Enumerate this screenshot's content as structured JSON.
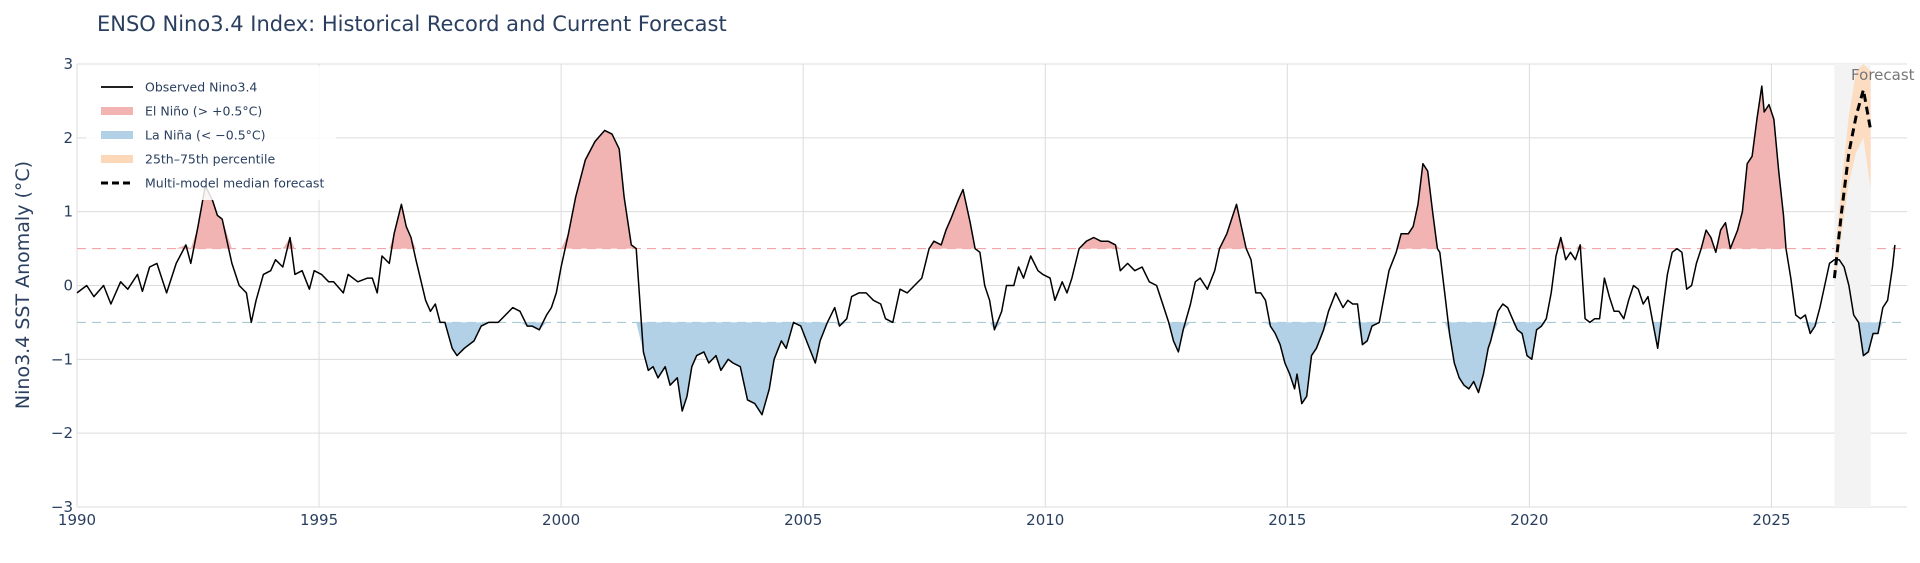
{
  "chart_data": {
    "type": "line",
    "title": "ENSO Nino3.4 Index: Historical Record and Current Forecast",
    "xlabel": "",
    "ylabel": "Nino3.4 SST Anomaly (°C)",
    "xlim": [
      1990.0,
      2027.8
    ],
    "ylim": [
      -3,
      3
    ],
    "x_ticks": [
      1990,
      1995,
      2000,
      2005,
      2010,
      2015,
      2020,
      2025
    ],
    "y_ticks": [
      3,
      2,
      1,
      0,
      -1,
      -2,
      -3
    ],
    "y_tick_labels": [
      "3",
      "2",
      "1",
      "0",
      "−1",
      "−2",
      "−3"
    ],
    "grid": true,
    "legend_position": "top-left",
    "legend": [
      {
        "label": "Observed Nino3.4",
        "style": "line",
        "color": "#000000"
      },
      {
        "label": "El Niño (> +0.5°C)",
        "style": "band",
        "color": "#f2b4b3"
      },
      {
        "label": "La Niña (< −0.5°C)",
        "style": "band",
        "color": "#b2d0e6"
      },
      {
        "label": "25th–75th percentile",
        "style": "band",
        "color": "#fdd8b8"
      },
      {
        "label": "Multi-model median forecast",
        "style": "dashed",
        "color": "#000000"
      }
    ],
    "thresholds": [
      {
        "value": 0.5,
        "color": "#f2a4a8"
      },
      {
        "value": -0.5,
        "color": "#a9cbd4"
      }
    ],
    "annotations": [
      {
        "text": "Forecast",
        "x": 2027.3,
        "y": 2.85
      }
    ],
    "forecast_region": {
      "x_start": 2026.3,
      "x_end": 2027.05,
      "color": "#f3f3f3"
    },
    "observed": {
      "name": "Observed Nino3.4",
      "points": [
        [
          1990.0,
          -0.1
        ],
        [
          1990.2,
          0.0
        ],
        [
          1990.35,
          -0.15
        ],
        [
          1990.55,
          0.0
        ],
        [
          1990.7,
          -0.25
        ],
        [
          1990.9,
          0.05
        ],
        [
          1991.05,
          -0.05
        ],
        [
          1991.25,
          0.15
        ],
        [
          1991.35,
          -0.08
        ],
        [
          1991.5,
          0.25
        ],
        [
          1991.65,
          0.3
        ],
        [
          1991.85,
          -0.1
        ],
        [
          1992.05,
          0.3
        ],
        [
          1992.25,
          0.55
        ],
        [
          1992.35,
          0.3
        ],
        [
          1992.5,
          0.8
        ],
        [
          1992.65,
          1.35
        ],
        [
          1992.8,
          1.15
        ],
        [
          1992.9,
          0.95
        ],
        [
          1993.0,
          0.9
        ],
        [
          1993.2,
          0.3
        ],
        [
          1993.35,
          0.0
        ],
        [
          1993.5,
          -0.1
        ],
        [
          1993.6,
          -0.5
        ],
        [
          1993.7,
          -0.2
        ],
        [
          1993.85,
          0.15
        ],
        [
          1994.0,
          0.2
        ],
        [
          1994.1,
          0.35
        ],
        [
          1994.25,
          0.25
        ],
        [
          1994.4,
          0.65
        ],
        [
          1994.5,
          0.15
        ],
        [
          1994.65,
          0.2
        ],
        [
          1994.8,
          -0.05
        ],
        [
          1994.9,
          0.2
        ],
        [
          1995.05,
          0.15
        ],
        [
          1995.2,
          0.05
        ],
        [
          1995.3,
          0.05
        ],
        [
          1995.5,
          -0.1
        ],
        [
          1995.6,
          0.15
        ],
        [
          1995.8,
          0.05
        ],
        [
          1996.0,
          0.1
        ],
        [
          1996.1,
          0.1
        ],
        [
          1996.2,
          -0.1
        ],
        [
          1996.3,
          0.4
        ],
        [
          1996.45,
          0.3
        ],
        [
          1996.55,
          0.7
        ],
        [
          1996.7,
          1.1
        ],
        [
          1996.8,
          0.8
        ],
        [
          1996.9,
          0.65
        ],
        [
          1997.0,
          0.35
        ],
        [
          1997.2,
          -0.2
        ],
        [
          1997.3,
          -0.35
        ],
        [
          1997.4,
          -0.25
        ],
        [
          1997.5,
          -0.5
        ],
        [
          1997.6,
          -0.5
        ],
        [
          1997.75,
          -0.85
        ],
        [
          1997.85,
          -0.95
        ],
        [
          1998.0,
          -0.85
        ],
        [
          1998.2,
          -0.75
        ],
        [
          1998.35,
          -0.55
        ],
        [
          1998.5,
          -0.5
        ],
        [
          1998.7,
          -0.5
        ],
        [
          1998.85,
          -0.4
        ],
        [
          1999.0,
          -0.3
        ],
        [
          1999.15,
          -0.35
        ],
        [
          1999.3,
          -0.55
        ],
        [
          1999.4,
          -0.55
        ],
        [
          1999.55,
          -0.6
        ],
        [
          1999.7,
          -0.4
        ],
        [
          1999.8,
          -0.3
        ],
        [
          1999.9,
          -0.1
        ],
        [
          2000.0,
          0.25
        ],
        [
          2000.15,
          0.7
        ],
        [
          2000.3,
          1.2
        ],
        [
          2000.5,
          1.7
        ],
        [
          2000.7,
          1.95
        ],
        [
          2000.9,
          2.1
        ],
        [
          2001.05,
          2.05
        ],
        [
          2001.2,
          1.85
        ],
        [
          2001.3,
          1.2
        ],
        [
          2001.45,
          0.55
        ],
        [
          2001.55,
          0.5
        ],
        [
          2001.7,
          -0.9
        ],
        [
          2001.8,
          -1.15
        ],
        [
          2001.9,
          -1.1
        ],
        [
          2002.0,
          -1.25
        ],
        [
          2002.15,
          -1.1
        ],
        [
          2002.25,
          -1.35
        ],
        [
          2002.4,
          -1.25
        ],
        [
          2002.5,
          -1.7
        ],
        [
          2002.6,
          -1.5
        ],
        [
          2002.7,
          -1.1
        ],
        [
          2002.8,
          -0.95
        ],
        [
          2002.95,
          -0.9
        ],
        [
          2003.05,
          -1.05
        ],
        [
          2003.2,
          -0.95
        ],
        [
          2003.3,
          -1.15
        ],
        [
          2003.45,
          -1.0
        ],
        [
          2003.55,
          -1.05
        ],
        [
          2003.7,
          -1.1
        ],
        [
          2003.85,
          -1.55
        ],
        [
          2004.0,
          -1.6
        ],
        [
          2004.15,
          -1.75
        ],
        [
          2004.3,
          -1.4
        ],
        [
          2004.4,
          -1.0
        ],
        [
          2004.55,
          -0.75
        ],
        [
          2004.65,
          -0.85
        ],
        [
          2004.8,
          -0.5
        ],
        [
          2004.95,
          -0.55
        ],
        [
          2005.1,
          -0.8
        ],
        [
          2005.25,
          -1.05
        ],
        [
          2005.35,
          -0.75
        ],
        [
          2005.5,
          -0.5
        ],
        [
          2005.65,
          -0.3
        ],
        [
          2005.75,
          -0.55
        ],
        [
          2005.9,
          -0.45
        ],
        [
          2006.0,
          -0.15
        ],
        [
          2006.15,
          -0.1
        ],
        [
          2006.3,
          -0.1
        ],
        [
          2006.45,
          -0.2
        ],
        [
          2006.6,
          -0.25
        ],
        [
          2006.7,
          -0.45
        ],
        [
          2006.85,
          -0.5
        ],
        [
          2007.0,
          -0.05
        ],
        [
          2007.15,
          -0.1
        ],
        [
          2007.3,
          0.0
        ],
        [
          2007.45,
          0.1
        ],
        [
          2007.6,
          0.5
        ],
        [
          2007.7,
          0.6
        ],
        [
          2007.85,
          0.55
        ],
        [
          2007.95,
          0.75
        ],
        [
          2008.05,
          0.9
        ],
        [
          2008.2,
          1.15
        ],
        [
          2008.3,
          1.3
        ],
        [
          2008.45,
          0.85
        ],
        [
          2008.55,
          0.5
        ],
        [
          2008.65,
          0.45
        ],
        [
          2008.75,
          0.0
        ],
        [
          2008.85,
          -0.2
        ],
        [
          2008.95,
          -0.6
        ],
        [
          2009.1,
          -0.35
        ],
        [
          2009.2,
          0.0
        ],
        [
          2009.35,
          0.0
        ],
        [
          2009.45,
          0.25
        ],
        [
          2009.55,
          0.1
        ],
        [
          2009.7,
          0.4
        ],
        [
          2009.85,
          0.2
        ],
        [
          2009.95,
          0.15
        ],
        [
          2010.1,
          0.1
        ],
        [
          2010.2,
          -0.2
        ],
        [
          2010.35,
          0.05
        ],
        [
          2010.45,
          -0.1
        ],
        [
          2010.55,
          0.1
        ],
        [
          2010.7,
          0.5
        ],
        [
          2010.85,
          0.6
        ],
        [
          2011.0,
          0.65
        ],
        [
          2011.15,
          0.6
        ],
        [
          2011.3,
          0.6
        ],
        [
          2011.45,
          0.55
        ],
        [
          2011.55,
          0.2
        ],
        [
          2011.7,
          0.3
        ],
        [
          2011.85,
          0.2
        ],
        [
          2012.0,
          0.25
        ],
        [
          2012.15,
          0.05
        ],
        [
          2012.3,
          0.0
        ],
        [
          2012.45,
          -0.3
        ],
        [
          2012.55,
          -0.5
        ],
        [
          2012.65,
          -0.75
        ],
        [
          2012.75,
          -0.9
        ],
        [
          2012.85,
          -0.6
        ],
        [
          2013.0,
          -0.25
        ],
        [
          2013.1,
          0.05
        ],
        [
          2013.2,
          0.1
        ],
        [
          2013.35,
          -0.05
        ],
        [
          2013.5,
          0.2
        ],
        [
          2013.6,
          0.5
        ],
        [
          2013.75,
          0.7
        ],
        [
          2013.85,
          0.9
        ],
        [
          2013.95,
          1.1
        ],
        [
          2014.05,
          0.8
        ],
        [
          2014.15,
          0.5
        ],
        [
          2014.25,
          0.35
        ],
        [
          2014.35,
          -0.1
        ],
        [
          2014.45,
          -0.1
        ],
        [
          2014.55,
          -0.2
        ],
        [
          2014.65,
          -0.55
        ],
        [
          2014.75,
          -0.65
        ],
        [
          2014.85,
          -0.8
        ],
        [
          2014.95,
          -1.05
        ],
        [
          2015.05,
          -1.2
        ],
        [
          2015.15,
          -1.4
        ],
        [
          2015.2,
          -1.2
        ],
        [
          2015.3,
          -1.6
        ],
        [
          2015.4,
          -1.5
        ],
        [
          2015.5,
          -0.95
        ],
        [
          2015.6,
          -0.85
        ],
        [
          2015.75,
          -0.6
        ],
        [
          2015.85,
          -0.35
        ],
        [
          2016.0,
          -0.1
        ],
        [
          2016.15,
          -0.3
        ],
        [
          2016.25,
          -0.2
        ],
        [
          2016.35,
          -0.25
        ],
        [
          2016.45,
          -0.25
        ],
        [
          2016.55,
          -0.8
        ],
        [
          2016.65,
          -0.75
        ],
        [
          2016.75,
          -0.55
        ],
        [
          2016.9,
          -0.5
        ],
        [
          2017.0,
          -0.15
        ],
        [
          2017.1,
          0.2
        ],
        [
          2017.25,
          0.45
        ],
        [
          2017.35,
          0.7
        ],
        [
          2017.5,
          0.7
        ],
        [
          2017.6,
          0.8
        ],
        [
          2017.7,
          1.1
        ],
        [
          2017.8,
          1.65
        ],
        [
          2017.9,
          1.55
        ],
        [
          2018.0,
          1.0
        ],
        [
          2018.1,
          0.5
        ],
        [
          2018.15,
          0.45
        ],
        [
          2018.25,
          -0.1
        ],
        [
          2018.35,
          -0.65
        ],
        [
          2018.45,
          -1.05
        ],
        [
          2018.55,
          -1.25
        ],
        [
          2018.65,
          -1.35
        ],
        [
          2018.75,
          -1.4
        ],
        [
          2018.85,
          -1.3
        ],
        [
          2018.95,
          -1.45
        ],
        [
          2019.05,
          -1.2
        ],
        [
          2019.15,
          -0.85
        ],
        [
          2019.2,
          -0.75
        ],
        [
          2019.35,
          -0.35
        ],
        [
          2019.45,
          -0.25
        ],
        [
          2019.55,
          -0.3
        ],
        [
          2019.65,
          -0.45
        ],
        [
          2019.75,
          -0.6
        ],
        [
          2019.85,
          -0.65
        ],
        [
          2019.95,
          -0.95
        ],
        [
          2020.05,
          -1.0
        ],
        [
          2020.15,
          -0.6
        ],
        [
          2020.25,
          -0.55
        ],
        [
          2020.35,
          -0.45
        ],
        [
          2020.45,
          -0.1
        ],
        [
          2020.55,
          0.4
        ],
        [
          2020.65,
          0.65
        ],
        [
          2020.75,
          0.35
        ],
        [
          2020.85,
          0.45
        ],
        [
          2020.95,
          0.35
        ],
        [
          2021.05,
          0.55
        ],
        [
          2021.15,
          -0.45
        ],
        [
          2021.25,
          -0.5
        ],
        [
          2021.35,
          -0.45
        ],
        [
          2021.45,
          -0.45
        ],
        [
          2021.55,
          0.1
        ],
        [
          2021.65,
          -0.15
        ],
        [
          2021.75,
          -0.35
        ],
        [
          2021.85,
          -0.35
        ],
        [
          2021.95,
          -0.45
        ],
        [
          2022.05,
          -0.2
        ],
        [
          2022.15,
          0.0
        ],
        [
          2022.25,
          -0.05
        ],
        [
          2022.35,
          -0.25
        ],
        [
          2022.45,
          -0.15
        ],
        [
          2022.55,
          -0.5
        ],
        [
          2022.65,
          -0.85
        ],
        [
          2022.75,
          -0.35
        ],
        [
          2022.85,
          0.15
        ],
        [
          2022.95,
          0.45
        ],
        [
          2023.05,
          0.5
        ],
        [
          2023.15,
          0.45
        ],
        [
          2023.25,
          -0.05
        ],
        [
          2023.35,
          0.0
        ],
        [
          2023.45,
          0.3
        ],
        [
          2023.55,
          0.5
        ],
        [
          2023.65,
          0.75
        ],
        [
          2023.75,
          0.65
        ],
        [
          2023.85,
          0.45
        ],
        [
          2023.95,
          0.75
        ],
        [
          2024.05,
          0.85
        ],
        [
          2024.15,
          0.5
        ],
        [
          2024.3,
          0.75
        ],
        [
          2024.4,
          1.0
        ],
        [
          2024.5,
          1.65
        ],
        [
          2024.6,
          1.75
        ],
        [
          2024.7,
          2.25
        ],
        [
          2024.8,
          2.7
        ],
        [
          2024.85,
          2.35
        ],
        [
          2024.95,
          2.45
        ],
        [
          2025.05,
          2.25
        ],
        [
          2025.15,
          1.55
        ],
        [
          2025.25,
          0.95
        ],
        [
          2025.3,
          0.5
        ],
        [
          2025.4,
          0.1
        ],
        [
          2025.5,
          -0.4
        ],
        [
          2025.6,
          -0.45
        ],
        [
          2025.7,
          -0.4
        ],
        [
          2025.8,
          -0.65
        ],
        [
          2025.9,
          -0.55
        ],
        [
          2026.0,
          -0.3
        ],
        [
          2026.1,
          0.0
        ],
        [
          2026.2,
          0.3
        ],
        [
          2026.3,
          0.35
        ],
        [
          2026.4,
          0.35
        ],
        [
          2026.5,
          0.25
        ],
        [
          2026.6,
          0.0
        ],
        [
          2026.7,
          -0.4
        ],
        [
          2026.8,
          -0.5
        ],
        [
          2026.9,
          -0.95
        ],
        [
          2027.0,
          -0.9
        ],
        [
          2027.1,
          -0.65
        ],
        [
          2027.2,
          -0.65
        ],
        [
          2027.3,
          -0.3
        ],
        [
          2027.4,
          -0.2
        ],
        [
          2027.5,
          0.25
        ],
        [
          2027.55,
          0.55
        ]
      ]
    },
    "forecast": {
      "name": "Multi-model median forecast",
      "x": [
        2026.3,
        2026.45,
        2026.6,
        2026.75,
        2026.9,
        2027.05
      ],
      "median": [
        0.1,
        1.0,
        1.8,
        2.3,
        2.65,
        2.1
      ],
      "p25": [
        0.0,
        0.7,
        1.4,
        1.8,
        2.0,
        1.3
      ],
      "p75": [
        0.3,
        1.4,
        2.3,
        2.9,
        3.0,
        2.9
      ]
    }
  }
}
